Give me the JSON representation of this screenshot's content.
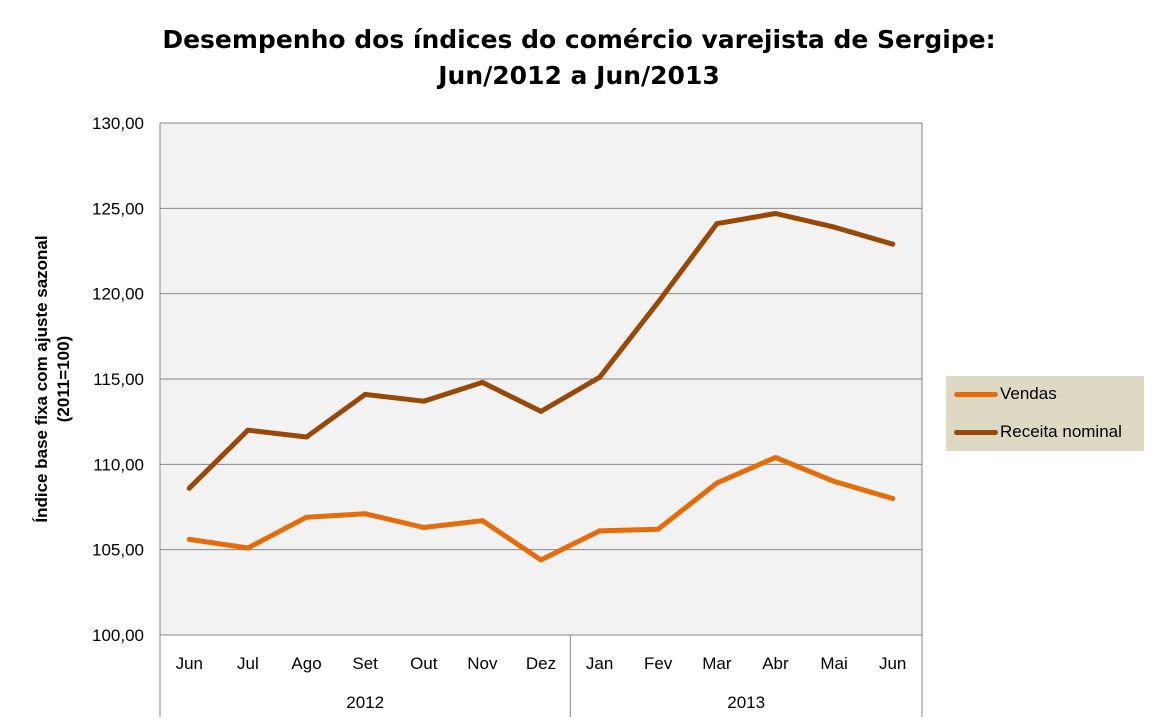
{
  "chart_data": {
    "type": "line",
    "title": [
      "Desempenho dos índices do comércio varejista de Sergipe:",
      "Jun/2012 a Jun/2013"
    ],
    "ylabel": [
      "Índice base fixa com ajuste sazonal",
      "(2011=100)"
    ],
    "xlabel": "",
    "categories": [
      "Jun",
      "Jul",
      "Ago",
      "Set",
      "Out",
      "Nov",
      "Dez",
      "Jan",
      "Fev",
      "Mar",
      "Abr",
      "Mai",
      "Jun"
    ],
    "groups": [
      {
        "label": "2012",
        "count": 7
      },
      {
        "label": "2013",
        "count": 6
      }
    ],
    "ylim": [
      100,
      130
    ],
    "yticks": [
      "100,00",
      "105,00",
      "110,00",
      "115,00",
      "120,00",
      "125,00",
      "130,00"
    ],
    "grid": true,
    "legend_position": "right",
    "series": [
      {
        "name": "Vendas",
        "color": "#e46c0a",
        "values": [
          105.6,
          105.1,
          106.9,
          107.1,
          106.3,
          106.7,
          104.4,
          106.1,
          106.2,
          108.9,
          110.4,
          109.0,
          108.0
        ]
      },
      {
        "name": "Receita nominal",
        "color": "#984807",
        "values": [
          108.6,
          112.0,
          111.6,
          114.1,
          113.7,
          114.8,
          113.1,
          115.1,
          119.5,
          124.1,
          124.7,
          123.9,
          122.9
        ]
      }
    ]
  }
}
